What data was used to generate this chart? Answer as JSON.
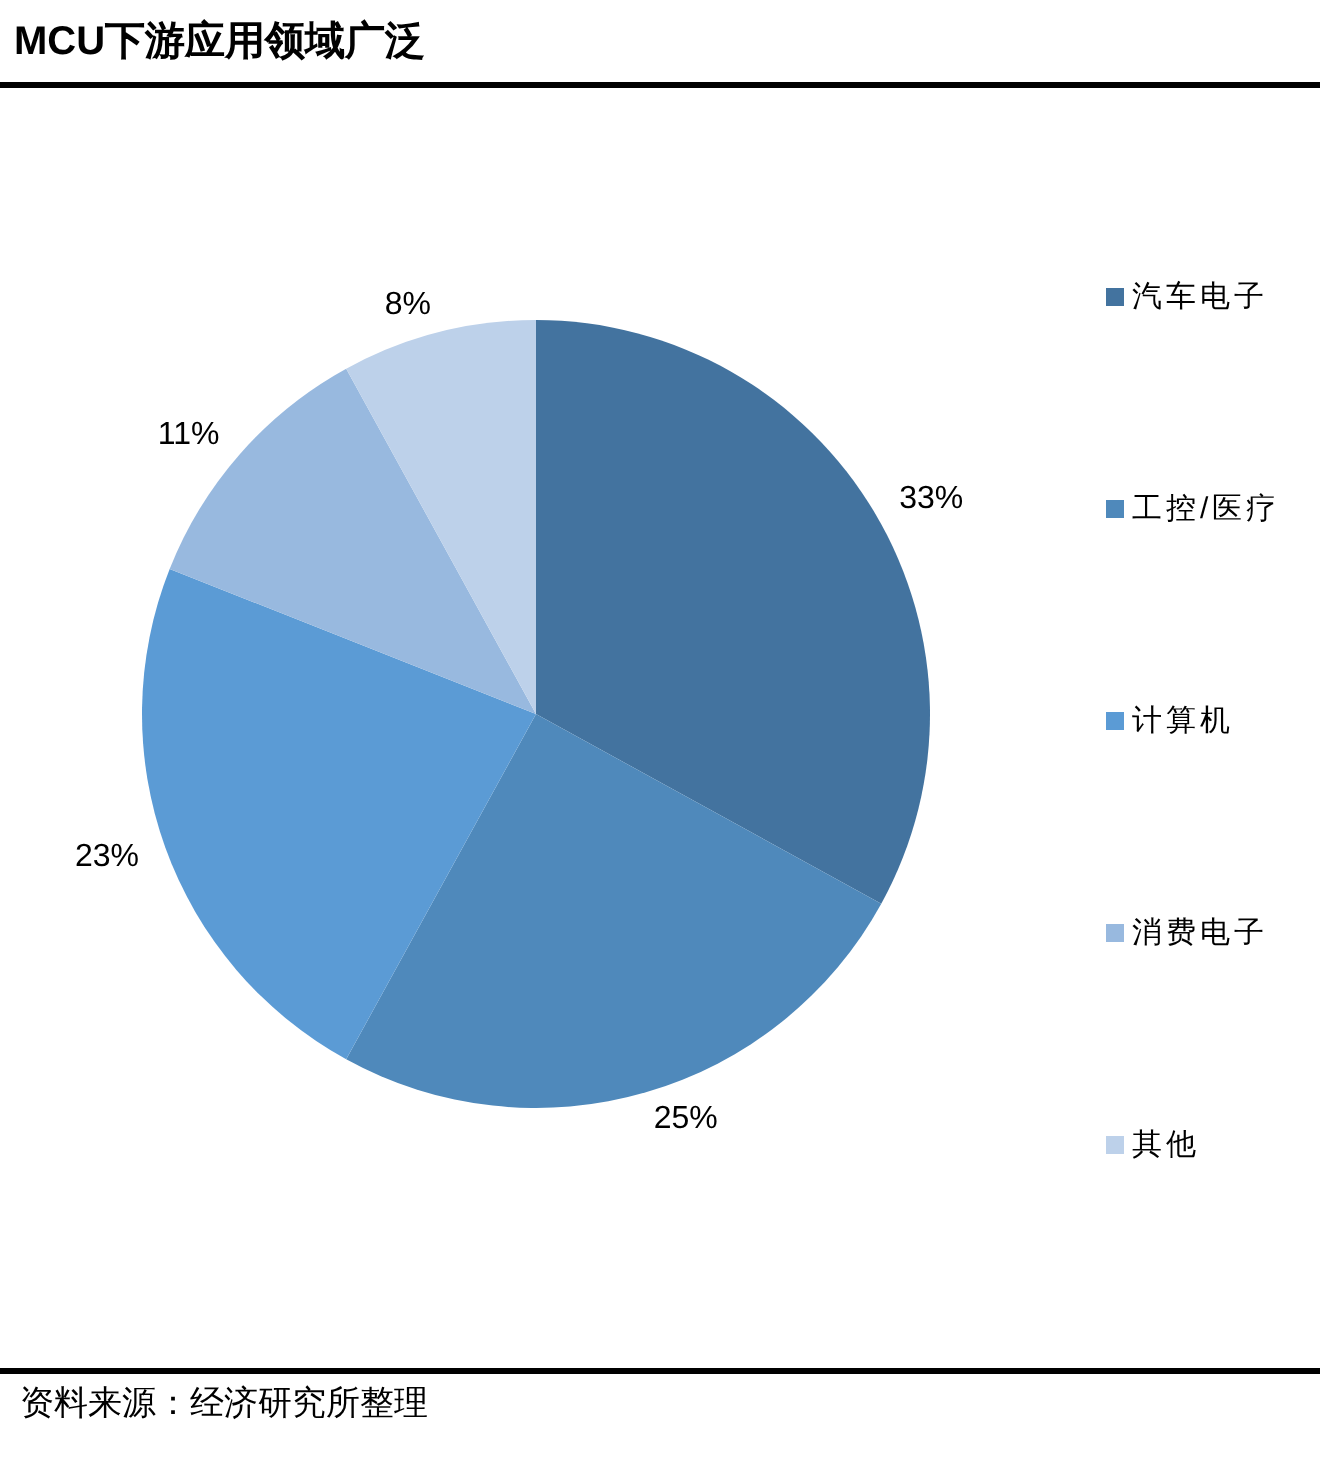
{
  "chart_data": {
    "type": "pie",
    "title": "MCU下游应用领域广泛",
    "categories": [
      "汽车电子",
      "工控/医疗",
      "计算机",
      "消费电子",
      "其他"
    ],
    "values": [
      33,
      25,
      23,
      11,
      8
    ],
    "colors": [
      "#43739f",
      "#4f89bb",
      "#5b9bd5",
      "#98b9df",
      "#bdd1ea"
    ],
    "value_labels": [
      "33%",
      "25%",
      "23%",
      "11%",
      "8%"
    ],
    "legend": "right",
    "annotations": [
      "资料来源：经济研究所整理"
    ]
  }
}
